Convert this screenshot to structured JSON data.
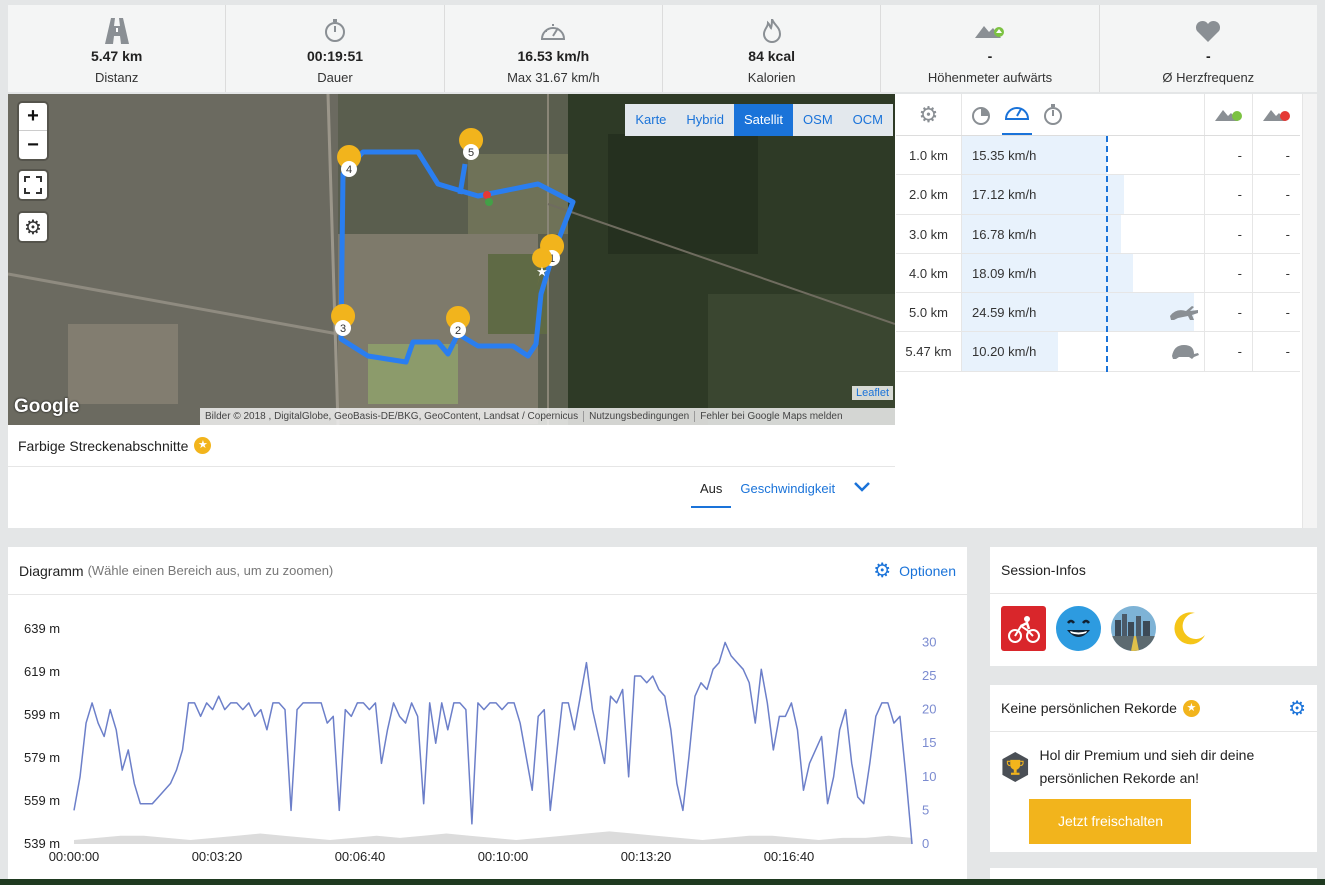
{
  "stats": [
    {
      "value": "5.47 km",
      "label": "Distanz",
      "icon": "road-icon"
    },
    {
      "value": "00:19:51",
      "label": "Dauer",
      "icon": "stopwatch-icon"
    },
    {
      "value": "16.53 km/h",
      "label": "Max 31.67 km/h",
      "icon": "speedometer-icon"
    },
    {
      "value": "84 kcal",
      "label": "Kalorien",
      "icon": "flame-icon"
    },
    {
      "value": "-",
      "label": "Höhenmeter aufwärts",
      "icon": "elevation-up-icon"
    },
    {
      "value": "-",
      "label": "Ø Herzfrequenz",
      "icon": "heart-icon"
    }
  ],
  "map": {
    "zoom_in": "+",
    "zoom_out": "−",
    "types": [
      "Karte",
      "Hybrid",
      "Satellit",
      "OSM",
      "OCM"
    ],
    "active_type": "Satellit",
    "leaflet": "Leaflet",
    "google_logo": "Google",
    "attribution": [
      "Bilder © 2018 , DigitalGlobe, GeoBasis-DE/BKG, GeoContent, Landsat / Copernicus",
      "Nutzungsbedingungen",
      "Fehler bei Google Maps melden"
    ],
    "markers": [
      "1",
      "2",
      "3",
      "4",
      "5"
    ],
    "route_color": "#2a7ef0"
  },
  "segments": {
    "title": "Farbige Streckenabschnitte",
    "tabs": [
      "Aus",
      "Geschwindigkeit"
    ]
  },
  "splits": {
    "rows": [
      {
        "km": "1.0 km",
        "speed": "15.35 km/h",
        "v": 15.35,
        "up": "-",
        "down": "-",
        "mark": ""
      },
      {
        "km": "2.0 km",
        "speed": "17.12 km/h",
        "v": 17.12,
        "up": "-",
        "down": "-",
        "mark": ""
      },
      {
        "km": "3.0 km",
        "speed": "16.78 km/h",
        "v": 16.78,
        "up": "-",
        "down": "-",
        "mark": ""
      },
      {
        "km": "4.0 km",
        "speed": "18.09 km/h",
        "v": 18.09,
        "up": "-",
        "down": "-",
        "mark": ""
      },
      {
        "km": "5.0 km",
        "speed": "24.59 km/h",
        "v": 24.59,
        "up": "-",
        "down": "-",
        "mark": "rabbit-icon"
      },
      {
        "km": "5.47 km",
        "speed": "10.20 km/h",
        "v": 10.2,
        "up": "-",
        "down": "-",
        "mark": "turtle-icon"
      }
    ]
  },
  "chart": {
    "title": "Diagramm",
    "subtitle": "(Wähle einen Bereich aus, um zu zoomen)",
    "options_label": "Optionen"
  },
  "chart_data": {
    "type": "line",
    "x_ticks": [
      "00:00:00",
      "00:03:20",
      "00:06:40",
      "00:10:00",
      "00:13:20",
      "00:16:40"
    ],
    "y_left_ticks": [
      "639 m",
      "619 m",
      "599 m",
      "579 m",
      "559 m",
      "539 m"
    ],
    "y_left_range": [
      539,
      639
    ],
    "y_right_ticks": [
      "30",
      "25",
      "20",
      "15",
      "10",
      "5",
      "0"
    ],
    "y_right_range": [
      0,
      32
    ],
    "series": [
      {
        "values": [
          5,
          10,
          18,
          21,
          18,
          16,
          20,
          17,
          11,
          14,
          9,
          6,
          6,
          6,
          7,
          8,
          9,
          11,
          14,
          21,
          21,
          19,
          21,
          20,
          22,
          20,
          21,
          21,
          20,
          21,
          19,
          20,
          17,
          21,
          21,
          20,
          5,
          20,
          21,
          21,
          21,
          21,
          18,
          19,
          5,
          20,
          19,
          21,
          21,
          20,
          21,
          12,
          17,
          21,
          19,
          18,
          21,
          19,
          6,
          21,
          15,
          21,
          17,
          21,
          21,
          20,
          3,
          21,
          20,
          21,
          21,
          20,
          21,
          21,
          18,
          13,
          8,
          19,
          20,
          5,
          13,
          21,
          21,
          17,
          22,
          27,
          20,
          16,
          12,
          22,
          21,
          23,
          10,
          25,
          25,
          24,
          25,
          23,
          22,
          17,
          9,
          5,
          13,
          22,
          24,
          23,
          26,
          27,
          30,
          28,
          27,
          26,
          24,
          18,
          26,
          21,
          14,
          19,
          19,
          21,
          17,
          8,
          12,
          14,
          16,
          6,
          10,
          17,
          20,
          12,
          7,
          6,
          12,
          19,
          21,
          21,
          18,
          19,
          10,
          0
        ]
      }
    ],
    "elevation_profile": [
      539,
      540,
      541,
      541,
      540,
      539,
      540,
      541,
      542,
      541,
      540,
      539,
      540,
      541,
      540,
      541,
      542,
      541,
      540,
      539,
      540,
      541,
      542,
      543,
      542,
      541,
      540,
      539,
      540,
      541,
      541,
      540,
      539,
      540,
      540,
      541,
      540
    ]
  },
  "session": {
    "title": "Session-Infos",
    "badges": [
      "cycling-icon",
      "happy-face-icon",
      "city-road-icon",
      "moon-icon"
    ]
  },
  "records": {
    "title": "Keine persönlichen Rekorde",
    "text": "Hol dir Premium und sieh dir deine persönlichen Rekorde an!",
    "button": "Jetzt freischalten"
  }
}
